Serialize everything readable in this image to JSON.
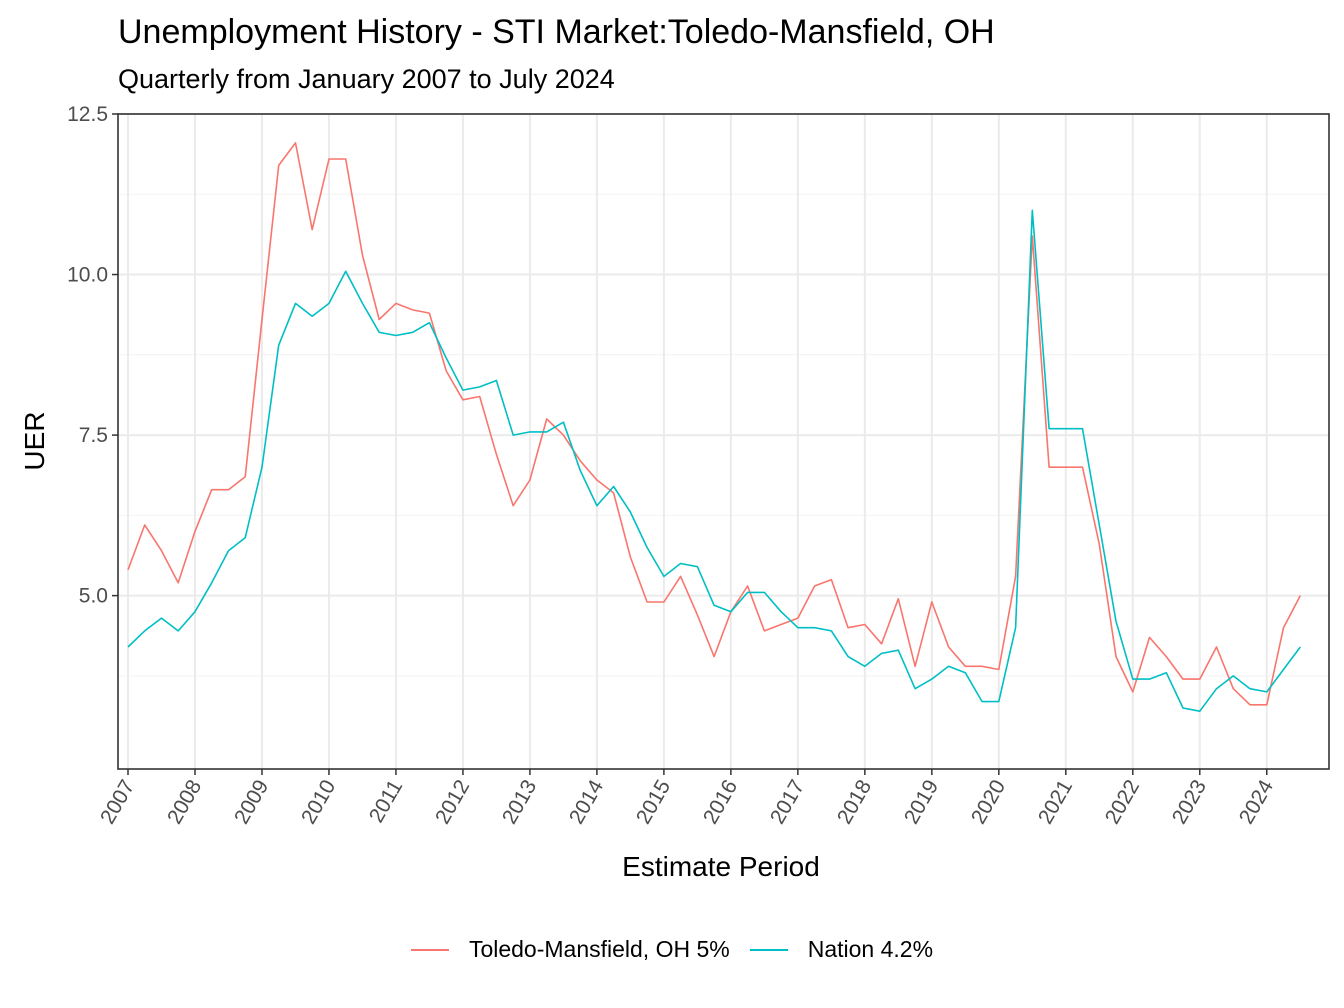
{
  "title": "Unemployment History - STI Market:Toledo-Mansfield, OH",
  "subtitle": "Quarterly from January 2007 to July 2024",
  "chart_data": {
    "type": "line",
    "title": "Unemployment History - STI Market:Toledo-Mansfield, OH",
    "subtitle": "Quarterly from January 2007 to July 2024",
    "xlabel": "Estimate Period",
    "ylabel": "UER",
    "xlim": [
      2007.0,
      2024.75
    ],
    "ylim": [
      2.3,
      12.5
    ],
    "yticks": [
      "5.0",
      "7.5",
      "10.0",
      "12.5"
    ],
    "xticks": [
      "2007",
      "2008",
      "2009",
      "2010",
      "2011",
      "2012",
      "2013",
      "2014",
      "2015",
      "2016",
      "2017",
      "2018",
      "2019",
      "2020",
      "2021",
      "2022",
      "2023",
      "2024"
    ],
    "grid": true,
    "legend_position": "bottom",
    "x": [
      "2007-01",
      "2007-04",
      "2007-07",
      "2007-10",
      "2008-01",
      "2008-04",
      "2008-07",
      "2008-10",
      "2009-01",
      "2009-04",
      "2009-07",
      "2009-10",
      "2010-01",
      "2010-04",
      "2010-07",
      "2010-10",
      "2011-01",
      "2011-04",
      "2011-07",
      "2011-10",
      "2012-01",
      "2012-04",
      "2012-07",
      "2012-10",
      "2013-01",
      "2013-04",
      "2013-07",
      "2013-10",
      "2014-01",
      "2014-04",
      "2014-07",
      "2014-10",
      "2015-01",
      "2015-04",
      "2015-07",
      "2015-10",
      "2016-01",
      "2016-04",
      "2016-07",
      "2016-10",
      "2017-01",
      "2017-04",
      "2017-07",
      "2017-10",
      "2018-01",
      "2018-04",
      "2018-07",
      "2018-10",
      "2019-01",
      "2019-04",
      "2019-07",
      "2019-10",
      "2020-01",
      "2020-04",
      "2020-07",
      "2020-10",
      "2021-01",
      "2021-04",
      "2021-07",
      "2021-10",
      "2022-01",
      "2022-04",
      "2022-07",
      "2022-10",
      "2023-01",
      "2023-04",
      "2023-07",
      "2023-10",
      "2024-01",
      "2024-04",
      "2024-07"
    ],
    "series": [
      {
        "name": "Toledo-Mansfield, OH 5%",
        "color": "#f8766d",
        "values": [
          5.4,
          6.1,
          5.7,
          5.2,
          6.0,
          6.65,
          6.65,
          6.85,
          9.3,
          11.7,
          12.05,
          10.7,
          11.8,
          11.8,
          10.3,
          9.3,
          9.55,
          9.45,
          9.4,
          8.5,
          8.05,
          8.1,
          7.2,
          6.4,
          6.8,
          7.75,
          7.5,
          7.1,
          6.8,
          6.6,
          5.6,
          4.9,
          4.9,
          5.3,
          4.7,
          4.05,
          4.75,
          5.15,
          4.45,
          4.55,
          4.65,
          5.15,
          5.25,
          4.5,
          4.55,
          4.25,
          4.95,
          3.9,
          4.9,
          4.2,
          3.9,
          3.9,
          3.85,
          5.3,
          10.6,
          7.0,
          7.0,
          7.0,
          5.8,
          4.05,
          3.5,
          4.35,
          4.05,
          3.7,
          3.7,
          4.2,
          3.55,
          3.3,
          3.3,
          4.5,
          5.0
        ]
      },
      {
        "name": "Nation 4.2%",
        "color": "#00bfc4",
        "values": [
          4.2,
          4.45,
          4.65,
          4.45,
          4.75,
          5.2,
          5.7,
          5.9,
          7.0,
          8.9,
          9.55,
          9.35,
          9.55,
          10.05,
          9.55,
          9.1,
          9.05,
          9.1,
          9.25,
          8.7,
          8.2,
          8.25,
          8.35,
          7.5,
          7.55,
          7.55,
          7.7,
          6.95,
          6.4,
          6.7,
          6.3,
          5.75,
          5.3,
          5.5,
          5.45,
          4.85,
          4.75,
          5.05,
          5.05,
          4.75,
          4.5,
          4.5,
          4.45,
          4.05,
          3.9,
          4.1,
          4.15,
          3.55,
          3.7,
          3.9,
          3.8,
          3.35,
          3.35,
          4.5,
          11.0,
          7.6,
          7.6,
          7.6,
          6.1,
          4.6,
          3.7,
          3.7,
          3.8,
          3.25,
          3.2,
          3.55,
          3.75,
          3.55,
          3.5,
          3.85,
          4.2
        ]
      }
    ]
  }
}
